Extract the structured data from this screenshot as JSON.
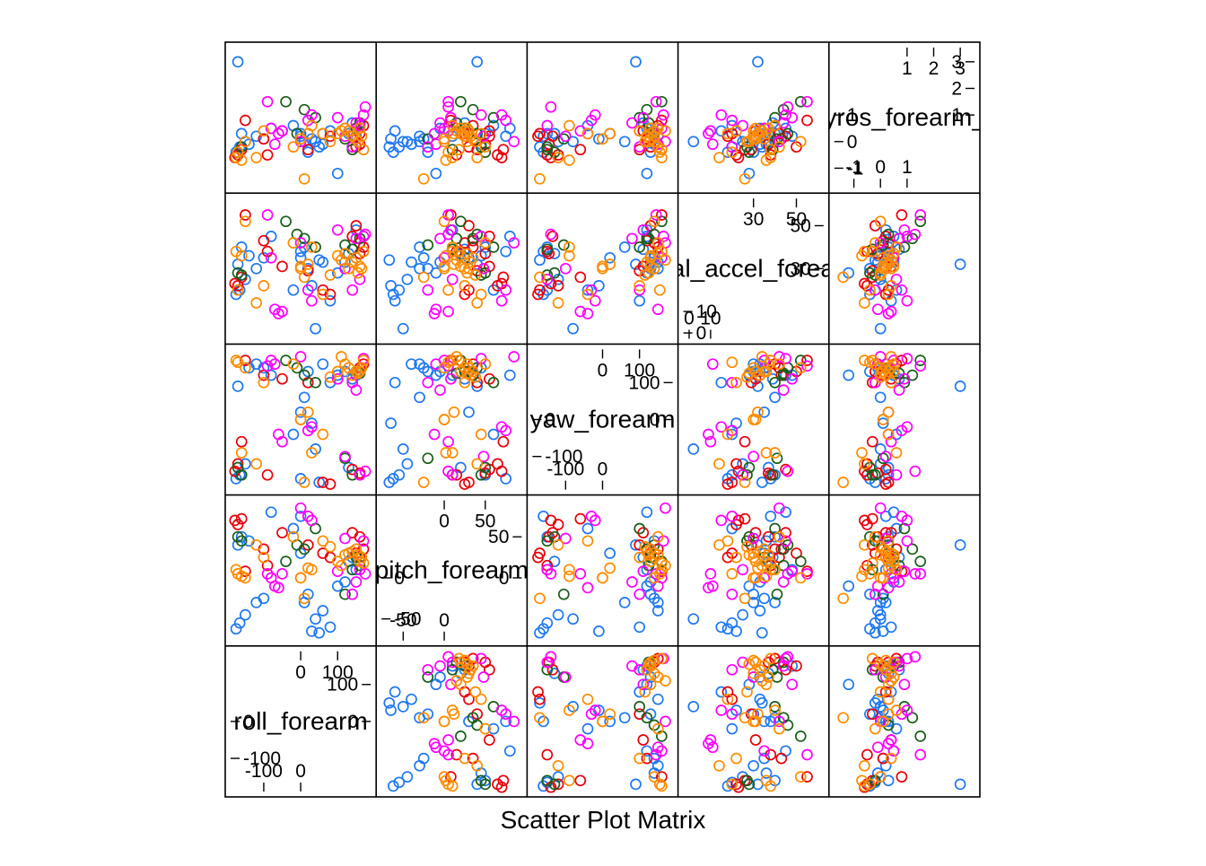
{
  "chart_data": {
    "type": "scatter",
    "xlabel": "Scatter Plot Matrix",
    "variables": [
      {
        "label": "roll_forearm",
        "range": [
          -180,
          180
        ],
        "ticks_low": [
          -100,
          0
        ],
        "ticks_high": [
          0,
          100
        ],
        "tick_labels_low": [
          "-100",
          "0"
        ],
        "tick_labels_high": [
          "0",
          "100"
        ]
      },
      {
        "label": "pitch_forearm",
        "range": [
          -72,
          90
        ],
        "ticks_low": [
          -50,
          0
        ],
        "ticks_high": [
          0,
          50
        ],
        "tick_labels_low": [
          "-50",
          "0"
        ],
        "tick_labels_high": [
          "0",
          "50"
        ]
      },
      {
        "label": "yaw_forearm",
        "range": [
          -180,
          180
        ],
        "ticks_low": [
          -100,
          0
        ],
        "ticks_high": [
          0,
          100
        ],
        "tick_labels_low": [
          "-100",
          "0"
        ],
        "tick_labels_high": [
          "0",
          "100"
        ]
      },
      {
        "label": "total_accel_forearm",
        "range": [
          -1,
          61
        ],
        "ticks_low": [
          0,
          10
        ],
        "ticks_high": [
          30,
          50
        ],
        "tick_labels_low": [
          "0",
          "10"
        ],
        "tick_labels_high": [
          "30",
          "50"
        ],
        "minor_low": [
          0,
          10,
          20
        ],
        "minor_high": [
          30,
          40,
          50
        ]
      },
      {
        "label": "gyros_forearm_x",
        "range": [
          -1.6,
          3.4
        ],
        "ticks_low": [
          -1,
          0,
          1
        ],
        "ticks_high": [
          1,
          2,
          3
        ],
        "tick_labels_low": [
          "-1",
          "0",
          "1"
        ],
        "tick_labels_high": [
          "1",
          "2",
          "3"
        ]
      }
    ],
    "series_colors": [
      "#1f78f0",
      "#e8000b",
      "#1a5e1a",
      "#ff00ff",
      "#ff8c00"
    ],
    "series": [
      {
        "color": "#1f78f0",
        "points": [
          [
            -175,
            -62,
            -160,
            18,
            -0.4
          ],
          [
            -165,
            -55,
            -150,
            20,
            -0.2
          ],
          [
            -150,
            -45,
            -120,
            25,
            0.0
          ],
          [
            -120,
            -30,
            150,
            30,
            0.2
          ],
          [
            -100,
            -25,
            140,
            35,
            0.1
          ],
          [
            -80,
            80,
            120,
            45,
            0.5
          ],
          [
            -20,
            60,
            -40,
            20,
            0.6
          ],
          [
            0,
            30,
            20,
            35,
            0.3
          ],
          [
            20,
            -20,
            130,
            30,
            -0.4
          ],
          [
            40,
            -50,
            -80,
            2,
            0.0
          ],
          [
            60,
            -40,
            150,
            33,
            -0.1
          ],
          [
            80,
            -60,
            100,
            15,
            0.4
          ],
          [
            100,
            -10,
            120,
            28,
            -1.2
          ],
          [
            120,
            -5,
            130,
            33,
            0.5
          ],
          [
            150,
            10,
            120,
            48,
            0.2
          ],
          [
            -170,
            40,
            90,
            32,
            3.0
          ],
          [
            -160,
            50,
            -150,
            40,
            0.3
          ],
          [
            -140,
            45,
            140,
            36,
            -0.1
          ],
          [
            0,
            75,
            -160,
            38,
            0.2
          ],
          [
            10,
            -30,
            60,
            40,
            0.0
          ],
          [
            30,
            -65,
            -10,
            22,
            0.1
          ],
          [
            50,
            -67,
            -170,
            34,
            -0.2
          ],
          [
            130,
            20,
            -130,
            37,
            0.3
          ],
          [
            140,
            25,
            110,
            39,
            0.7
          ]
        ]
      },
      {
        "color": "#e8000b",
        "points": [
          [
            -178,
            70,
            -140,
            23,
            -0.6
          ],
          [
            -170,
            65,
            -120,
            22,
            -0.5
          ],
          [
            -160,
            72,
            -60,
            26,
            -0.3
          ],
          [
            -100,
            35,
            120,
            43,
            0.1
          ],
          [
            60,
            30,
            -170,
            20,
            0.3
          ],
          [
            80,
            25,
            -175,
            18,
            0.2
          ],
          [
            150,
            30,
            130,
            50,
            -0.2
          ],
          [
            160,
            25,
            140,
            42,
            0.3
          ],
          [
            170,
            35,
            150,
            40,
            0.6
          ],
          [
            -90,
            15,
            -150,
            38,
            -0.5
          ],
          [
            -50,
            55,
            110,
            31,
            0.4
          ],
          [
            20,
            40,
            100,
            29,
            -0.3
          ],
          [
            140,
            55,
            -135,
            45,
            0.2
          ],
          [
            160,
            50,
            -145,
            37,
            -0.1
          ],
          [
            -150,
            8,
            160,
            55,
            0.8
          ]
        ]
      },
      {
        "color": "#1a5e1a",
        "points": [
          [
            -170,
            50,
            -130,
            28,
            -0.4
          ],
          [
            -160,
            45,
            -150,
            27,
            -0.2
          ],
          [
            -10,
            40,
            140,
            46,
            0.3
          ],
          [
            10,
            35,
            120,
            44,
            1.2
          ],
          [
            120,
            -20,
            -105,
            41,
            0.1
          ],
          [
            140,
            10,
            -150,
            39,
            -0.3
          ],
          [
            150,
            25,
            130,
            35,
            0.5
          ],
          [
            160,
            15,
            125,
            44,
            0.7
          ],
          [
            -40,
            20,
            160,
            52,
            1.5
          ],
          [
            40,
            60,
            100,
            40,
            0.9
          ]
        ]
      },
      {
        "color": "#ff00ff",
        "points": [
          [
            -90,
            5,
            145,
            55,
            1.5
          ],
          [
            -80,
            0,
            160,
            35,
            0.5
          ],
          [
            -70,
            -10,
            150,
            11,
            -0.1
          ],
          [
            -60,
            -12,
            -40,
            9,
            0.3
          ],
          [
            -50,
            5,
            -60,
            10,
            0.4
          ],
          [
            0,
            85,
            170,
            42,
            0.0
          ],
          [
            20,
            75,
            -30,
            20,
            0.8
          ],
          [
            30,
            70,
            -20,
            15,
            1.0
          ],
          [
            150,
            -5,
            80,
            44,
            0.7
          ],
          [
            160,
            10,
            -150,
            25,
            0.6
          ],
          [
            170,
            45,
            165,
            45,
            1.0
          ],
          [
            175,
            5,
            -140,
            46,
            1.3
          ],
          [
            140,
            -20,
            100,
            20,
            -0.2
          ],
          [
            100,
            8,
            110,
            48,
            0.9
          ],
          [
            120,
            48,
            -100,
            30,
            0.2
          ]
        ]
      },
      {
        "color": "#ff8c00",
        "points": [
          [
            -175,
            10,
            160,
            38,
            -0.6
          ],
          [
            -170,
            5,
            155,
            20,
            -0.4
          ],
          [
            -160,
            2,
            -90,
            36,
            -0.7
          ],
          [
            -150,
            0,
            140,
            52,
            0.0
          ],
          [
            -100,
            25,
            100,
            22,
            0.4
          ],
          [
            0,
            0,
            0,
            31,
            0.1
          ],
          [
            0,
            0,
            0,
            30,
            0.1
          ],
          [
            20,
            12,
            20,
            32,
            0.3
          ],
          [
            100,
            20,
            130,
            36,
            0.3
          ],
          [
            120,
            28,
            150,
            37,
            0.5
          ],
          [
            130,
            30,
            140,
            30,
            0.4
          ],
          [
            140,
            32,
            120,
            33,
            0.2
          ],
          [
            150,
            35,
            130,
            35,
            0.1
          ],
          [
            155,
            28,
            125,
            28,
            0.0
          ],
          [
            160,
            20,
            130,
            31,
            0.5
          ],
          [
            165,
            25,
            140,
            30,
            0.2
          ],
          [
            170,
            18,
            160,
            38,
            -0.3
          ],
          [
            -120,
            40,
            -120,
            14,
            -0.6
          ],
          [
            10,
            -25,
            -170,
            26,
            -1.4
          ],
          [
            30,
            10,
            -90,
            40,
            0.6
          ],
          [
            -20,
            50,
            150,
            42,
            -0.2
          ],
          [
            60,
            45,
            -40,
            18,
            0.3
          ],
          [
            80,
            38,
            115,
            27,
            0.0
          ],
          [
            110,
            15,
            170,
            34,
            0.4
          ]
        ]
      }
    ]
  }
}
